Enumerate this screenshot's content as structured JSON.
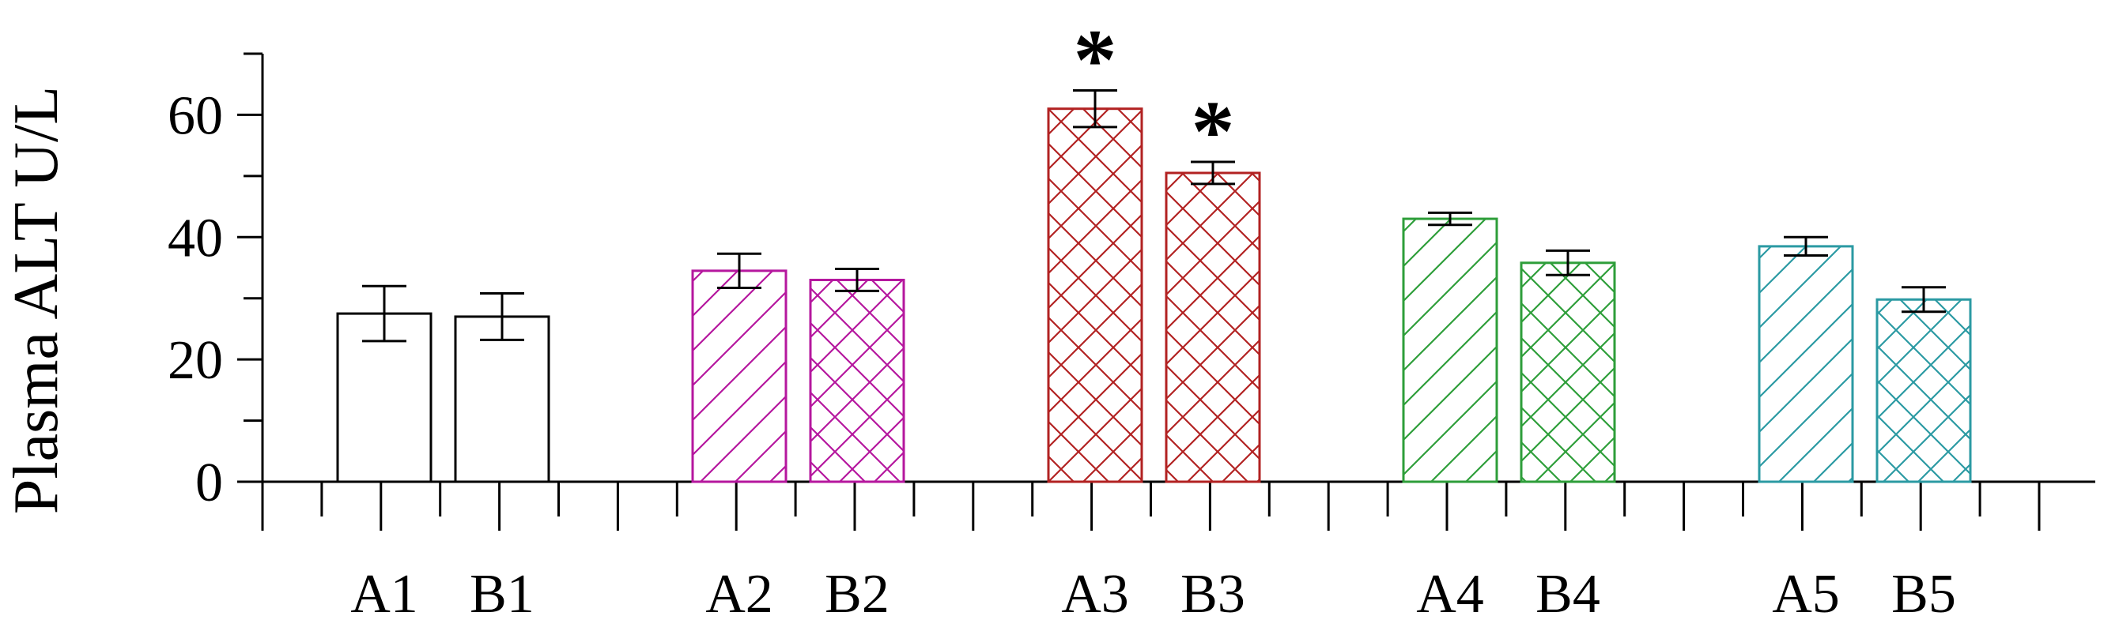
{
  "chart_data": {
    "type": "bar",
    "title": "",
    "ylabel": "Plasma ALT U/L",
    "xlabel": "",
    "ylim": [
      0,
      70
    ],
    "yticks": [
      0,
      20,
      40,
      60
    ],
    "grid": false,
    "legend": "none",
    "categories": [
      "A1",
      "B1",
      "A2",
      "B2",
      "A3",
      "B3",
      "A4",
      "B4",
      "A5",
      "B5"
    ],
    "values": [
      27.5,
      27,
      34.5,
      33,
      61,
      50.5,
      43,
      35.8,
      38.5,
      29.8
    ],
    "errors": [
      4.5,
      3.8,
      2.8,
      1.8,
      3,
      1.8,
      1,
      2,
      1.5,
      2
    ],
    "significance": [
      "",
      "",
      "",
      "",
      "*",
      "*",
      "",
      "",
      "",
      ""
    ],
    "patterns": [
      "none",
      "none",
      "diagonal",
      "cross",
      "cross",
      "cross",
      "diagonal",
      "cross",
      "diagonal",
      "cross"
    ],
    "colors": [
      "#000000",
      "#000000",
      "#b5179e",
      "#b5179e",
      "#b22222",
      "#b22222",
      "#2e9e3a",
      "#2e9e3a",
      "#2b9aa3",
      "#2b9aa3"
    ]
  }
}
